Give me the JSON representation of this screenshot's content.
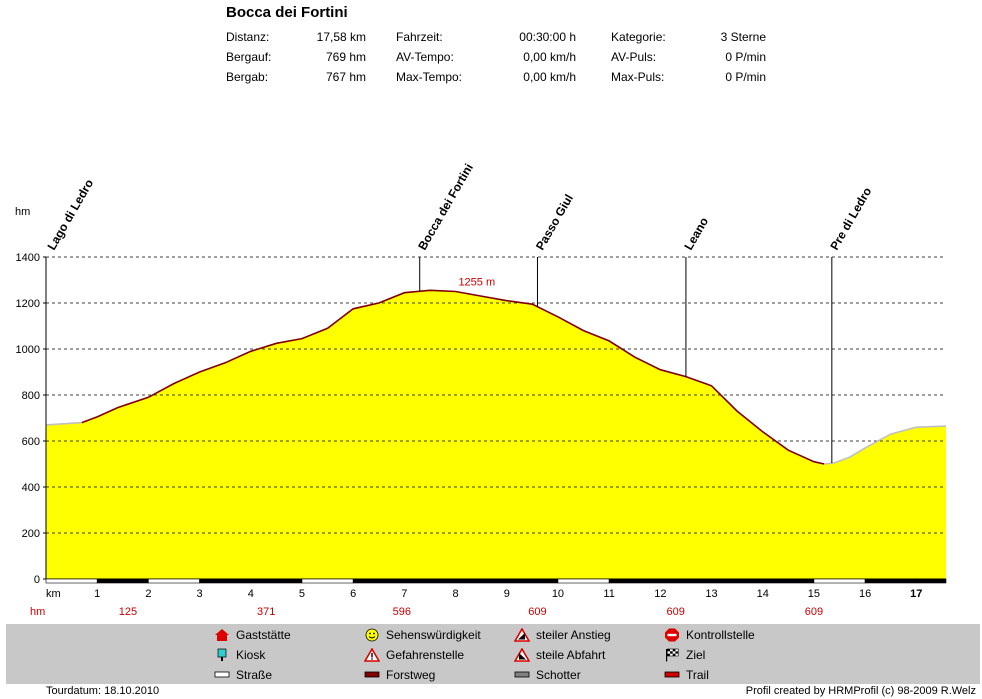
{
  "header": {
    "title": "Bocca dei Fortini",
    "col1": [
      {
        "label": "Distanz:",
        "value": "17,58 km"
      },
      {
        "label": "Bergauf:",
        "value": "769 hm"
      },
      {
        "label": "Bergab:",
        "value": "767 hm"
      }
    ],
    "col2": [
      {
        "label": "Fahrzeit:",
        "value": "00:30:00 h"
      },
      {
        "label": "AV-Tempo:",
        "value": "0,00 km/h"
      },
      {
        "label": "Max-Tempo:",
        "value": "0,00 km/h"
      }
    ],
    "col3": [
      {
        "label": "Kategorie:",
        "value": "3 Sterne"
      },
      {
        "label": "AV-Puls:",
        "value": "0 P/min"
      },
      {
        "label": "Max-Puls:",
        "value": "0 P/min"
      }
    ]
  },
  "chart_data": {
    "type": "area",
    "title": "Bocca dei Fortini",
    "ylabel": "hm",
    "xlabel": "km",
    "xlim": [
      0,
      17.58
    ],
    "ylim": [
      0,
      1400
    ],
    "y_ticks": [
      0,
      200,
      400,
      600,
      800,
      1000,
      1200,
      1400
    ],
    "x_ticks": [
      1,
      2,
      3,
      4,
      5,
      6,
      7,
      8,
      9,
      10,
      11,
      12,
      13,
      14,
      15,
      16,
      17
    ],
    "x_ticks_bold": [
      17
    ],
    "grid": "horizontal-dashed",
    "profile": {
      "x": [
        0,
        0.7,
        1.0,
        1.4,
        2.0,
        2.5,
        3.0,
        3.5,
        4.0,
        4.5,
        5.0,
        5.5,
        6.0,
        6.5,
        7.0,
        7.5,
        8.0,
        8.5,
        9.0,
        9.5,
        10.0,
        10.5,
        11.0,
        11.5,
        12.0,
        12.5,
        13.0,
        13.5,
        14.0,
        14.5,
        15.0,
        15.2,
        15.4,
        15.7,
        16.0,
        16.5,
        17.0,
        17.58
      ],
      "y": [
        670,
        680,
        705,
        745,
        790,
        850,
        900,
        940,
        990,
        1025,
        1045,
        1090,
        1175,
        1200,
        1245,
        1255,
        1250,
        1230,
        1210,
        1195,
        1140,
        1080,
        1035,
        965,
        910,
        880,
        840,
        730,
        640,
        560,
        510,
        500,
        505,
        530,
        570,
        630,
        660,
        665
      ]
    },
    "waypoints": [
      {
        "name": "Lago di Ledro",
        "x": 0
      },
      {
        "name": "Bocca dei Fortini",
        "x": 7.3
      },
      {
        "name": "Passo Giul",
        "x": 9.6
      },
      {
        "name": "Leano",
        "x": 12.5
      },
      {
        "name": "Pre di Ledro",
        "x": 15.35
      }
    ],
    "max_label": {
      "text": "1255 m",
      "x": 8.2,
      "y": 1255
    },
    "hm_row": {
      "label": "hm",
      "values": [
        {
          "x": 1.6,
          "text": "125"
        },
        {
          "x": 4.3,
          "text": "371"
        },
        {
          "x": 6.95,
          "text": "596"
        },
        {
          "x": 9.6,
          "text": "609"
        },
        {
          "x": 12.3,
          "text": "609"
        },
        {
          "x": 15.0,
          "text": "609"
        }
      ]
    },
    "surface_segments": [
      {
        "from": 0,
        "to": 1,
        "type": "Straße"
      },
      {
        "from": 1,
        "to": 2,
        "type": "Forstweg"
      },
      {
        "from": 2,
        "to": 3,
        "type": "Straße"
      },
      {
        "from": 3,
        "to": 5,
        "type": "Forstweg"
      },
      {
        "from": 5,
        "to": 6,
        "type": "Straße"
      },
      {
        "from": 6,
        "to": 10,
        "type": "Forstweg"
      },
      {
        "from": 10,
        "to": 11,
        "type": "Straße"
      },
      {
        "from": 11,
        "to": 15,
        "type": "Forstweg"
      },
      {
        "from": 15,
        "to": 16,
        "type": "Straße"
      },
      {
        "from": 16,
        "to": 17,
        "type": "Forstweg"
      },
      {
        "from": 17,
        "to": 17.58,
        "type": "Forstweg"
      }
    ],
    "colors": {
      "fill": "#ffff00",
      "line": "#800000",
      "road_line": "#c0c0c0",
      "grid": "#000000",
      "hm_text": "#cc0000"
    }
  },
  "legend": [
    {
      "icon": "gaststaette-icon",
      "label": "Gaststätte"
    },
    {
      "icon": "kiosk-icon",
      "label": "Kiosk"
    },
    {
      "icon": "strasse-icon",
      "label": "Straße"
    },
    {
      "icon": "sehenswuerdigkeit-icon",
      "label": "Sehenswürdigkeit"
    },
    {
      "icon": "gefahrenstelle-icon",
      "label": "Gefahrenstelle"
    },
    {
      "icon": "forstweg-icon",
      "label": "Forstweg"
    },
    {
      "icon": "steiler-anstieg-icon",
      "label": "steiler Anstieg"
    },
    {
      "icon": "steile-abfahrt-icon",
      "label": "steile Abfahrt"
    },
    {
      "icon": "schotter-icon",
      "label": "Schotter"
    },
    {
      "icon": "kontrollstelle-icon",
      "label": "Kontrollstelle"
    },
    {
      "icon": "ziel-icon",
      "label": "Ziel"
    },
    {
      "icon": "trail-icon",
      "label": "Trail"
    }
  ],
  "footer": {
    "left": "Tourdatum: 18.10.2010",
    "right": "Profil created by HRMProfil (c) 98-2009 R.Welz"
  }
}
